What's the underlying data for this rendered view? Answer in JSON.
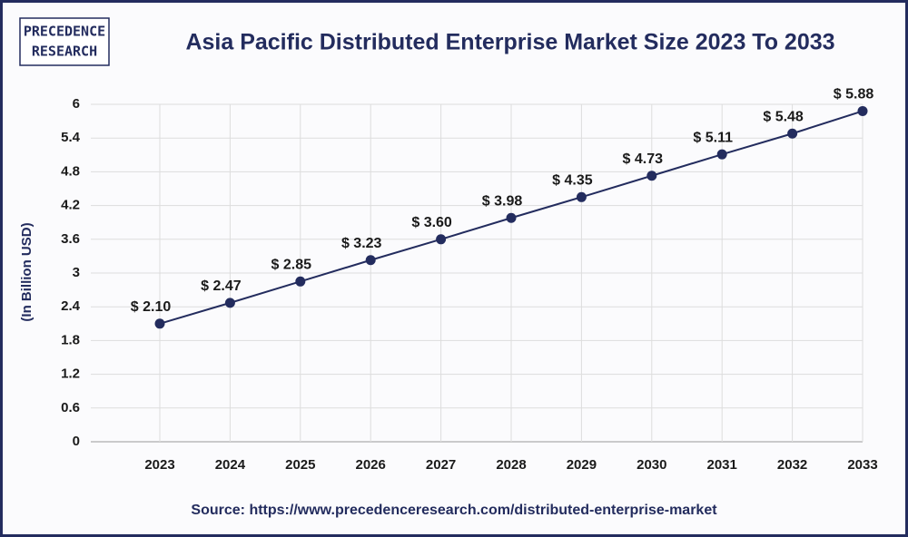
{
  "logo": {
    "line1": "PRECEDENCE",
    "line2": "RESEARCH"
  },
  "chart_data": {
    "type": "line",
    "title": "Asia Pacific Distributed Enterprise Market Size 2023 To 2033",
    "y_label": "(In Billion USD)",
    "source": "Source: https://www.precedenceresearch.com/distributed-enterprise-market",
    "categories": [
      "2023",
      "2024",
      "2025",
      "2026",
      "2027",
      "2028",
      "2029",
      "2030",
      "2031",
      "2032",
      "2033"
    ],
    "values": [
      2.1,
      2.47,
      2.85,
      3.23,
      3.6,
      3.98,
      4.35,
      4.73,
      5.11,
      5.48,
      5.88
    ],
    "value_labels": [
      "$ 2.10",
      "$ 2.47",
      "$ 2.85",
      "$ 3.23",
      "$ 3.60",
      "$ 3.98",
      "$ 4.35",
      "$ 4.73",
      "$ 5.11",
      "$ 5.48",
      "$ 5.88"
    ],
    "color": "#232c5e",
    "ylim": [
      0,
      6
    ],
    "yticks": [
      0,
      0.6,
      1.2,
      1.8,
      2.4,
      3,
      3.6,
      4.2,
      4.8,
      5.4,
      6
    ],
    "grid": true
  }
}
